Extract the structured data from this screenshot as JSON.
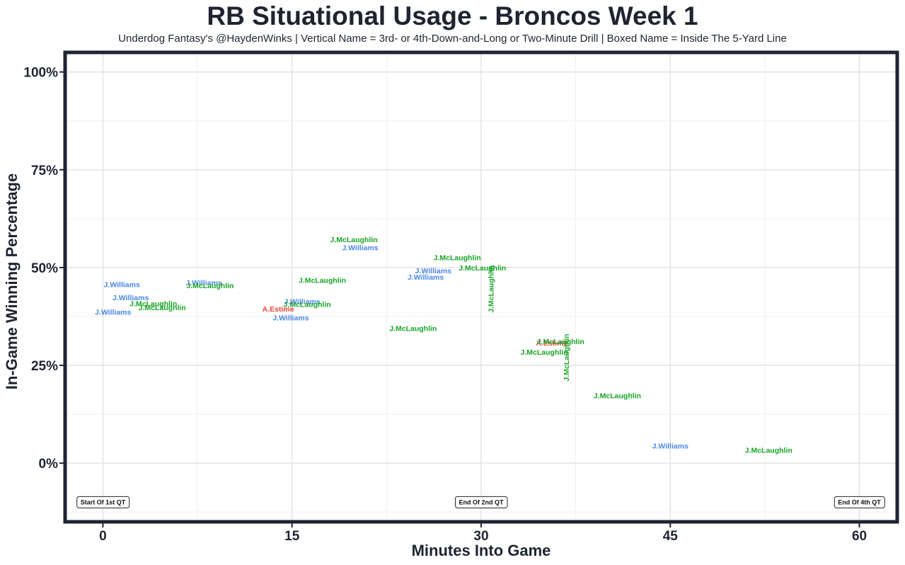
{
  "title": "RB Situational Usage - Broncos Week 1",
  "subtitle": "Underdog Fantasy's @HaydenWinks | Vertical Name = 3rd- or 4th-Down-and-Long or Two-Minute Drill | Boxed Name = Inside The 5-Yard Line",
  "colors": {
    "J.Williams": "#4a86e8",
    "J.McLaughlin": "#17a524",
    "A.Estime": "#e8483c",
    "axis": "#1e2430"
  },
  "chart_data": {
    "type": "scatter",
    "xlabel": "Minutes Into Game",
    "ylabel": "In-Game Winning Percentage",
    "xlim": [
      -3,
      63
    ],
    "ylim": [
      -15,
      105
    ],
    "x_ticks": [
      0,
      15,
      30,
      45,
      60
    ],
    "y_ticks": [
      {
        "value": 0,
        "label": "0%"
      },
      {
        "value": 25,
        "label": "25%"
      },
      {
        "value": 50,
        "label": "50%"
      },
      {
        "value": 75,
        "label": "75%"
      },
      {
        "value": 100,
        "label": "100%"
      }
    ],
    "grid": true,
    "period_markers": [
      {
        "x": 0,
        "y": -10,
        "label": "Start Of 1st QT"
      },
      {
        "x": 30,
        "y": -10,
        "label": "End Of 2nd QT"
      },
      {
        "x": 60,
        "y": -10,
        "label": "End Of 4th QT"
      }
    ],
    "points": [
      {
        "player": "J.Williams",
        "x": 0.8,
        "y": 38.5,
        "vertical": false
      },
      {
        "player": "J.Williams",
        "x": 1.5,
        "y": 45.5,
        "vertical": false
      },
      {
        "player": "J.Williams",
        "x": 2.2,
        "y": 42.2,
        "vertical": false
      },
      {
        "player": "J.McLaughlin",
        "x": 4.0,
        "y": 40.7,
        "vertical": false
      },
      {
        "player": "J.McLaughlin",
        "x": 4.7,
        "y": 39.7,
        "vertical": false
      },
      {
        "player": "J.Williams",
        "x": 8.0,
        "y": 46.0,
        "vertical": false
      },
      {
        "player": "J.McLaughlin",
        "x": 8.5,
        "y": 45.3,
        "vertical": false
      },
      {
        "player": "J.Williams",
        "x": 14.9,
        "y": 37.0,
        "vertical": false
      },
      {
        "player": "A.Estime",
        "x": 13.9,
        "y": 39.3,
        "vertical": false
      },
      {
        "player": "J.Williams",
        "x": 15.8,
        "y": 41.2,
        "vertical": false
      },
      {
        "player": "J.McLaughlin",
        "x": 16.2,
        "y": 40.5,
        "vertical": false
      },
      {
        "player": "J.McLaughlin",
        "x": 17.4,
        "y": 46.6,
        "vertical": false
      },
      {
        "player": "J.McLaughlin",
        "x": 19.9,
        "y": 57.0,
        "vertical": false
      },
      {
        "player": "J.Williams",
        "x": 20.4,
        "y": 55.0,
        "vertical": false
      },
      {
        "player": "J.McLaughlin",
        "x": 24.6,
        "y": 34.3,
        "vertical": false
      },
      {
        "player": "J.Williams",
        "x": 25.6,
        "y": 47.4,
        "vertical": false
      },
      {
        "player": "J.Williams",
        "x": 26.2,
        "y": 49.1,
        "vertical": false
      },
      {
        "player": "J.McLaughlin",
        "x": 28.1,
        "y": 52.4,
        "vertical": false
      },
      {
        "player": "J.McLaughlin",
        "x": 30.1,
        "y": 49.8,
        "vertical": false
      },
      {
        "player": "J.McLaughlin",
        "x": 30.8,
        "y": 44.5,
        "vertical": true
      },
      {
        "player": "J.McLaughlin",
        "x": 35.0,
        "y": 28.3,
        "vertical": false
      },
      {
        "player": "A.Estime",
        "x": 35.6,
        "y": 30.6,
        "vertical": false
      },
      {
        "player": "J.McLaughlin",
        "x": 36.3,
        "y": 31.0,
        "vertical": false
      },
      {
        "player": "J.McLaughlin",
        "x": 36.8,
        "y": 27.0,
        "vertical": true
      },
      {
        "player": "J.McLaughlin",
        "x": 40.8,
        "y": 17.1,
        "vertical": false
      },
      {
        "player": "J.Williams",
        "x": 45.0,
        "y": 4.3,
        "vertical": false
      },
      {
        "player": "J.McLaughlin",
        "x": 52.8,
        "y": 3.2,
        "vertical": false
      }
    ]
  }
}
